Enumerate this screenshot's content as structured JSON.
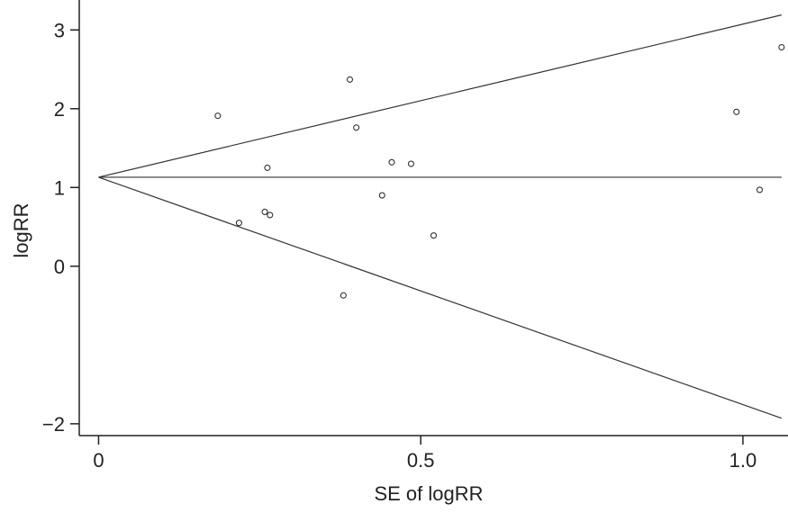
{
  "chart_data": {
    "type": "scatter",
    "title": "",
    "xlabel": "SE of logRR",
    "ylabel": "logRR",
    "xlim": [
      -0.03,
      1.07
    ],
    "ylim": [
      -2.15,
      3.38
    ],
    "x_ticks": [
      0,
      0.5,
      1.0
    ],
    "x_tick_labels": [
      "0",
      "0.5",
      "1.0"
    ],
    "y_ticks": [
      -2,
      0,
      1,
      2,
      3
    ],
    "y_tick_labels": [
      "−2",
      "0",
      "1",
      "2",
      "3"
    ],
    "grid": false,
    "legend": "none",
    "points": [
      {
        "x": 0.185,
        "y": 1.91
      },
      {
        "x": 0.218,
        "y": 0.55
      },
      {
        "x": 0.258,
        "y": 0.69
      },
      {
        "x": 0.262,
        "y": 1.25
      },
      {
        "x": 0.266,
        "y": 0.65
      },
      {
        "x": 0.38,
        "y": -0.37
      },
      {
        "x": 0.39,
        "y": 2.37
      },
      {
        "x": 0.4,
        "y": 1.76
      },
      {
        "x": 0.44,
        "y": 0.9
      },
      {
        "x": 0.455,
        "y": 1.32
      },
      {
        "x": 0.485,
        "y": 1.3
      },
      {
        "x": 0.52,
        "y": 0.39
      },
      {
        "x": 0.99,
        "y": 1.96
      },
      {
        "x": 1.026,
        "y": 0.97
      },
      {
        "x": 1.06,
        "y": 2.78
      }
    ],
    "reference_lines": {
      "pooled_estimate": 1.13,
      "upper_limit_at_end": 3.19,
      "lower_limit_at_end": -1.93,
      "x_end": 1.06
    }
  }
}
